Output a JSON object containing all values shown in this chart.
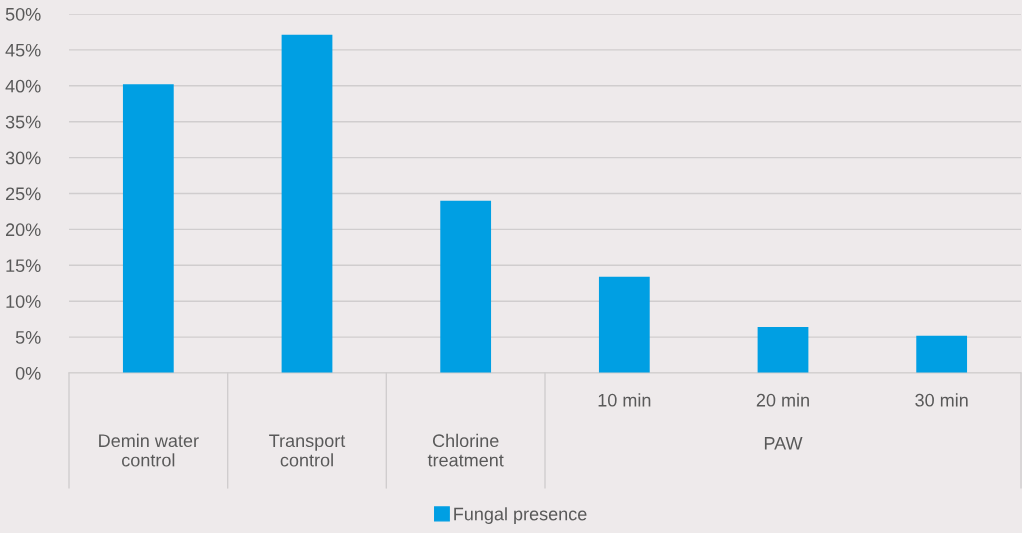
{
  "chart_data": {
    "type": "bar",
    "categories": [
      "Demin water control",
      "Transport control",
      "Chlorine treatment",
      "10 min",
      "20 min",
      "30 min"
    ],
    "series": [
      {
        "name": "Fungal presence",
        "color": "#009fe3",
        "values": [
          40.2,
          47.1,
          24.0,
          13.4,
          6.4,
          5.2
        ]
      }
    ],
    "ylim": [
      0,
      50
    ],
    "yticks": [
      {
        "value": 0,
        "label": "0%"
      },
      {
        "value": 5,
        "label": "5%"
      },
      {
        "value": 10,
        "label": "10%"
      },
      {
        "value": 15,
        "label": "15%"
      },
      {
        "value": 20,
        "label": "20%"
      },
      {
        "value": 25,
        "label": "25%"
      },
      {
        "value": 30,
        "label": "30%"
      },
      {
        "value": 35,
        "label": "35%"
      },
      {
        "value": 40,
        "label": "40%"
      },
      {
        "value": 45,
        "label": "45%"
      },
      {
        "value": 50,
        "label": "50%"
      }
    ],
    "annotations": [
      "PAW"
    ],
    "grid": "y",
    "legend": "bottom"
  }
}
